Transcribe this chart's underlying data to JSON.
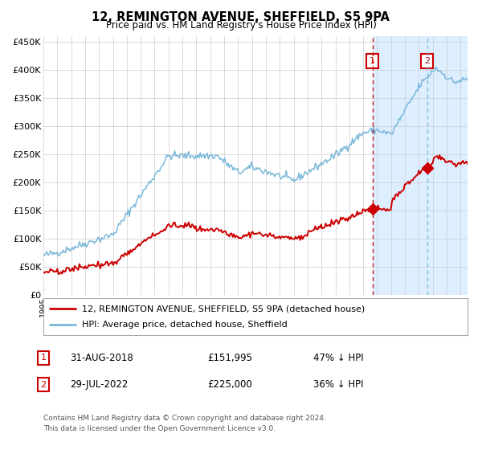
{
  "title": "12, REMINGTON AVENUE, SHEFFIELD, S5 9PA",
  "subtitle": "Price paid vs. HM Land Registry's House Price Index (HPI)",
  "legend_line1": "12, REMINGTON AVENUE, SHEFFIELD, S5 9PA (detached house)",
  "legend_line2": "HPI: Average price, detached house, Sheffield",
  "footnote1": "Contains HM Land Registry data © Crown copyright and database right 2024.",
  "footnote2": "This data is licensed under the Open Government Licence v3.0.",
  "sale1_date": "31-AUG-2018",
  "sale1_price": 151995,
  "sale1_price_str": "£151,995",
  "sale1_label": "1",
  "sale1_pct": "47% ↓ HPI",
  "sale2_date": "29-JUL-2022",
  "sale2_price": 225000,
  "sale2_price_str": "£225,000",
  "sale2_label": "2",
  "sale2_pct": "36% ↓ HPI",
  "hpi_color": "#7ab8d9",
  "price_color": "#cc0000",
  "vline1_color": "#cc0000",
  "vline2_color": "#7ab8d9",
  "shade_color": "#ddeeff",
  "background_color": "#ffffff",
  "grid_color": "#cccccc",
  "ylim": [
    0,
    460000
  ],
  "yticks": [
    0,
    50000,
    100000,
    150000,
    200000,
    250000,
    300000,
    350000,
    400000,
    450000
  ],
  "ytick_labels": [
    "£0",
    "£50K",
    "£100K",
    "£150K",
    "£200K",
    "£250K",
    "£300K",
    "£350K",
    "£400K",
    "£450K"
  ],
  "sale1_year": 2018.667,
  "sale2_year": 2022.583,
  "xlim_start": 1995,
  "xlim_end": 2025.5
}
